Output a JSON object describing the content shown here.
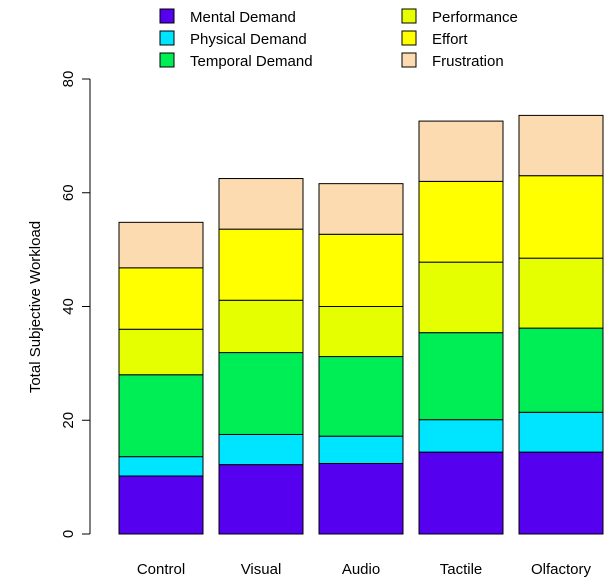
{
  "chart_data": {
    "type": "bar",
    "stacked": true,
    "title": "",
    "xlabel": "",
    "ylabel": "Total Subjective Workload",
    "ylim": [
      0,
      80
    ],
    "yticks": [
      0,
      20,
      40,
      60,
      80
    ],
    "categories": [
      "Control",
      "Visual",
      "Audio",
      "Tactile",
      "Olfactory"
    ],
    "legend_position": "top",
    "series": [
      {
        "name": "Mental Demand",
        "color": "#5500ee",
        "values": [
          10.2,
          12.2,
          12.4,
          14.4,
          14.4
        ]
      },
      {
        "name": "Physical Demand",
        "color": "#00e5ff",
        "values": [
          3.4,
          5.3,
          4.8,
          5.7,
          7.0
        ]
      },
      {
        "name": "Temporal Demand",
        "color": "#00ee55",
        "values": [
          14.4,
          14.4,
          14.0,
          15.3,
          14.8
        ]
      },
      {
        "name": "Performance",
        "color": "#e5ff00",
        "values": [
          8.0,
          9.2,
          8.8,
          12.4,
          12.3
        ]
      },
      {
        "name": "Effort",
        "color": "#ffff00",
        "values": [
          10.8,
          12.5,
          12.7,
          14.2,
          14.5
        ]
      },
      {
        "name": "Frustration",
        "color": "#fddbb0",
        "values": [
          8.0,
          8.9,
          8.9,
          10.6,
          10.6
        ]
      }
    ]
  }
}
